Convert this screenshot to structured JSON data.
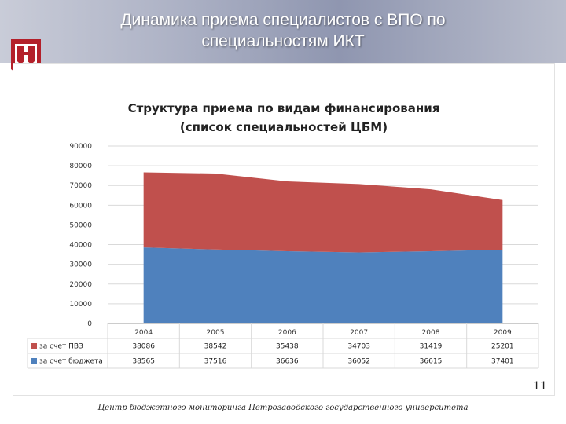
{
  "header": {
    "title_line1": "Динамика приема специалистов с ВПО по",
    "title_line2": "специальностям ИКТ"
  },
  "colors": {
    "paid": "#c0504d",
    "budget": "#4f81bd",
    "grid": "#d9d9d9"
  },
  "chart_data": {
    "type": "area",
    "title_line1": "Структура приема по видам финансирования",
    "title_line2": "(список специальностей ЦБМ)",
    "categories": [
      "2004",
      "2005",
      "2006",
      "2007",
      "2008",
      "2009"
    ],
    "yticks": [
      "90000",
      "80000",
      "70000",
      "60000",
      "50000",
      "40000",
      "30000",
      "20000",
      "10000",
      "0"
    ],
    "ylim": [
      0,
      90000
    ],
    "stacked": true,
    "grid": true,
    "legend": "table-below",
    "series": [
      {
        "name": "за счет ПВЗ",
        "color": "#c0504d",
        "values": [
          38086,
          38542,
          35438,
          34703,
          31419,
          25201
        ]
      },
      {
        "name": "за счет бюджета",
        "color": "#4f81bd",
        "values": [
          38565,
          37516,
          36636,
          36052,
          36615,
          37401
        ]
      }
    ]
  },
  "footer": {
    "page_number": "11",
    "org_text": "Центр бюджетного мониторинга Петрозаводского государственного университета"
  }
}
